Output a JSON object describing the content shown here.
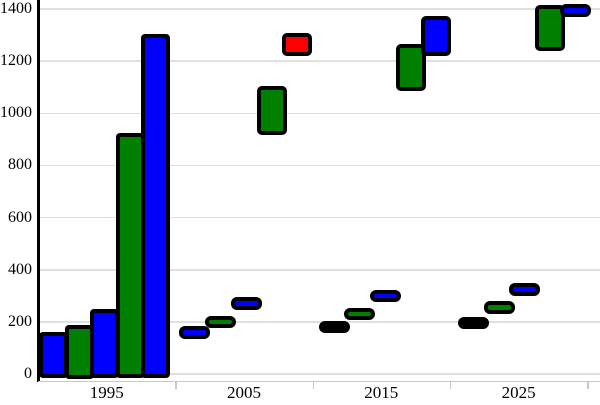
{
  "chart_data": {
    "type": "bar",
    "title": "",
    "xlabel": "",
    "ylabel": "",
    "ylim": [
      0,
      1400
    ],
    "ytick_values": [
      0,
      200,
      400,
      600,
      800,
      1000,
      1200,
      1400
    ],
    "ytick_labels": [
      "0",
      "200",
      "400",
      "600",
      "800",
      "1000",
      "1200",
      "1400"
    ],
    "categories": [
      "1995",
      "2005",
      "2015",
      "2025"
    ],
    "grid": "horizontal",
    "legend": "none",
    "palette": {
      "blue": "#0000ff",
      "green": "#008000",
      "red": "#ff0000",
      "black": "#000000",
      "outline": "#000000",
      "gridline": "#e0e0e0",
      "axis_gray": "#c9c9c9"
    },
    "groups": [
      {
        "label": "1995",
        "elements": [
          {
            "slot": 0,
            "kind": "bar",
            "color": "blue",
            "from": 0,
            "to": 160
          },
          {
            "slot": 1,
            "kind": "bar",
            "color": "green",
            "from": 0,
            "to": 190
          },
          {
            "slot": 2,
            "kind": "bar",
            "color": "blue",
            "from": 0,
            "to": 250
          },
          {
            "slot": 3,
            "kind": "bar",
            "color": "green",
            "from": 0,
            "to": 925
          },
          {
            "slot": 4,
            "kind": "bar",
            "color": "blue",
            "from": 0,
            "to": 1305
          }
        ]
      },
      {
        "label": "2005",
        "elements": [
          {
            "slot": 0,
            "kind": "tick",
            "color": "blue",
            "value": 160
          },
          {
            "slot": 1,
            "kind": "tick",
            "color": "green",
            "value": 200
          },
          {
            "slot": 2,
            "kind": "tick",
            "color": "blue",
            "value": 270
          },
          {
            "slot": 3,
            "kind": "range",
            "color": "green",
            "from": 915,
            "to": 1105
          },
          {
            "slot": 4,
            "kind": "range",
            "color": "red",
            "from": 1220,
            "to": 1310
          }
        ]
      },
      {
        "label": "2015",
        "elements": [
          {
            "slot": 0,
            "kind": "tick",
            "color": "black",
            "value": 180
          },
          {
            "slot": 1,
            "kind": "tick",
            "color": "green",
            "value": 230
          },
          {
            "slot": 2,
            "kind": "tick",
            "color": "blue",
            "value": 300
          },
          {
            "slot": 3,
            "kind": "range",
            "color": "green",
            "from": 1085,
            "to": 1265
          },
          {
            "slot": 4,
            "kind": "range",
            "color": "blue",
            "from": 1220,
            "to": 1375
          }
        ]
      },
      {
        "label": "2025",
        "elements": [
          {
            "slot": 0,
            "kind": "tick",
            "color": "black",
            "value": 195
          },
          {
            "slot": 1,
            "kind": "tick",
            "color": "green",
            "value": 255
          },
          {
            "slot": 2,
            "kind": "tick",
            "color": "blue",
            "value": 325
          },
          {
            "slot": 3,
            "kind": "range",
            "color": "green",
            "from": 1240,
            "to": 1415
          },
          {
            "slot": 4,
            "kind": "tick",
            "color": "blue",
            "value": 1395
          }
        ]
      }
    ]
  }
}
